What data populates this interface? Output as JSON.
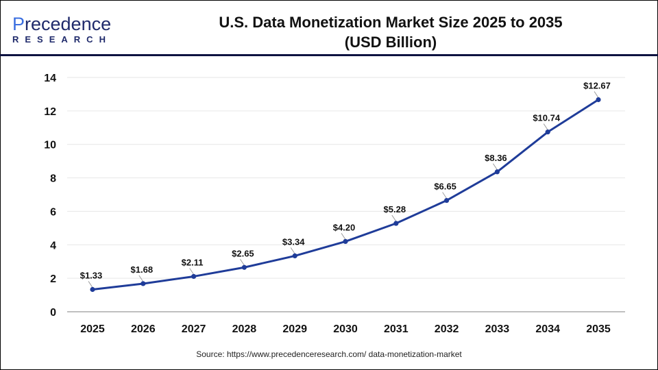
{
  "logo": {
    "main_text": "Precedence",
    "sub_text": "RESEARCH"
  },
  "title_line1": "U.S. Data Monetization Market Size 2025 to 2035",
  "title_line2": "(USD Billion)",
  "source": "Source: https://www.precedenceresearch.com/ data-monetization-market",
  "colors": {
    "line": "#1f3c99",
    "marker": "#1f3c99",
    "header_rule": "#0d1240"
  },
  "chart_data": {
    "type": "line",
    "title": "U.S. Data Monetization Market Size 2025 to 2035 (USD Billion)",
    "categories": [
      "2025",
      "2026",
      "2027",
      "2028",
      "2029",
      "2030",
      "2031",
      "2032",
      "2033",
      "2034",
      "2035"
    ],
    "values": [
      1.33,
      1.68,
      2.11,
      2.65,
      3.34,
      4.2,
      5.28,
      6.65,
      8.36,
      10.74,
      12.67
    ],
    "data_labels": [
      "$1.33",
      "$1.68",
      "$2.11",
      "$2.65",
      "$3.34",
      "$4.20",
      "$5.28",
      "$6.65",
      "$8.36",
      "$10.74",
      "$12.67"
    ],
    "ylim": [
      0,
      14
    ],
    "yticks": [
      0,
      2,
      4,
      6,
      8,
      10,
      12,
      14
    ],
    "grid": true,
    "xlabel": "",
    "ylabel": ""
  }
}
